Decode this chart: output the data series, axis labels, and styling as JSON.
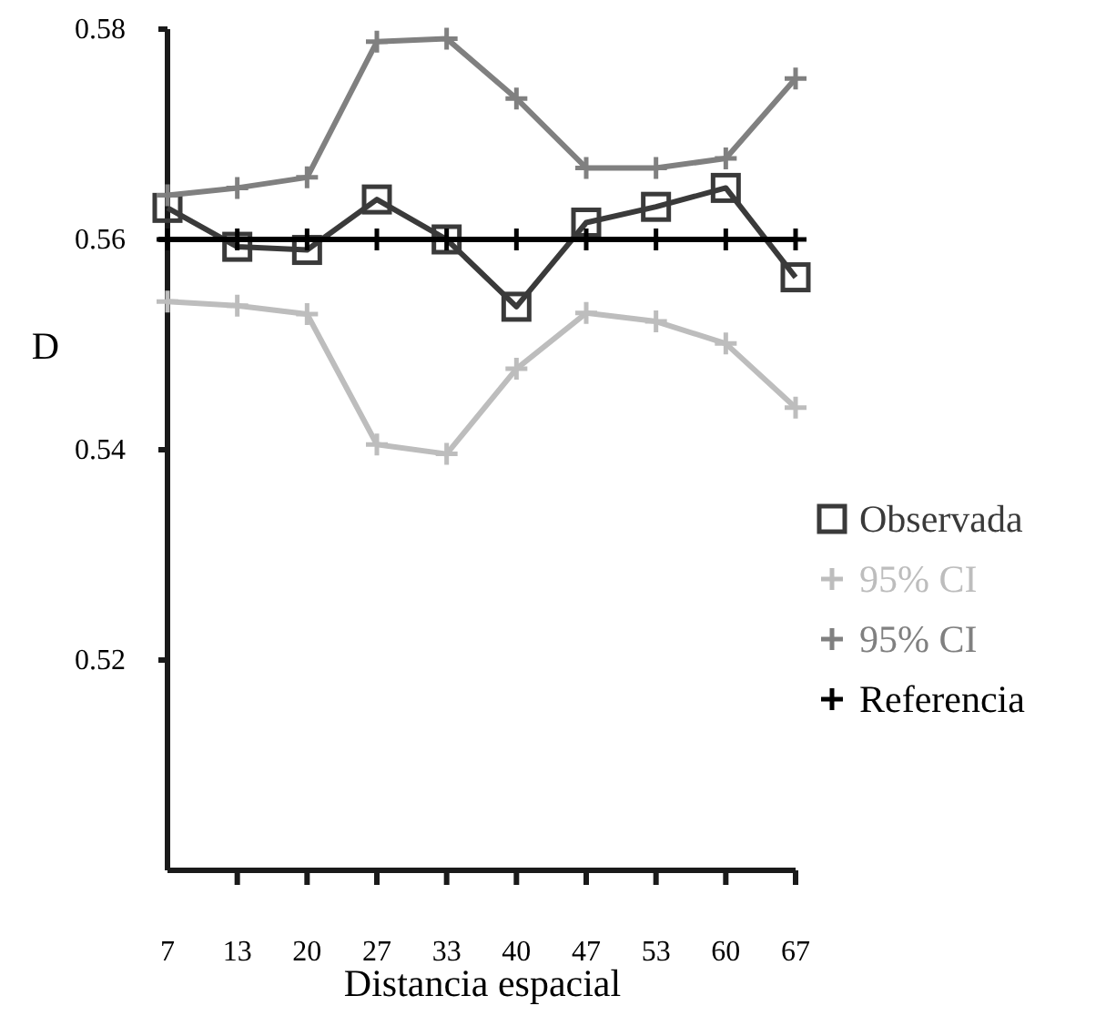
{
  "chart_data": {
    "type": "line",
    "xlabel": "Distancia espacial",
    "ylabel": "D",
    "categories": [
      "7",
      "13",
      "20",
      "27",
      "33",
      "40",
      "47",
      "53",
      "60",
      "67"
    ],
    "ylim": [
      0.5,
      0.58
    ],
    "yticks": [
      0.52,
      0.54,
      0.56,
      0.58
    ],
    "grid": false,
    "legend": "right",
    "line_style": "solid",
    "series": [
      {
        "name": "Observada",
        "color": "#3a3a3a",
        "marker": "square",
        "values": [
          0.563,
          0.5593,
          0.559,
          0.5638,
          0.56,
          0.5536,
          0.5616,
          0.5631,
          0.5649,
          0.5564
        ]
      },
      {
        "name": "95% CI",
        "color": "#bdbdbd",
        "marker": "cross",
        "values": [
          0.5541,
          0.5537,
          0.5529,
          0.5405,
          0.5396,
          0.5477,
          0.553,
          0.5522,
          0.5501,
          0.544
        ]
      },
      {
        "name": "95% CI",
        "color": "#808080",
        "marker": "cross",
        "values": [
          0.5642,
          0.5649,
          0.5659,
          0.5788,
          0.5791,
          0.5734,
          0.5668,
          0.5668,
          0.5677,
          0.5753
        ]
      },
      {
        "name": "Referencia",
        "color": "#000000",
        "marker": "cross",
        "values": [
          0.56,
          0.56,
          0.56,
          0.56,
          0.56,
          0.56,
          0.56,
          0.56,
          0.56,
          0.56
        ]
      }
    ]
  }
}
